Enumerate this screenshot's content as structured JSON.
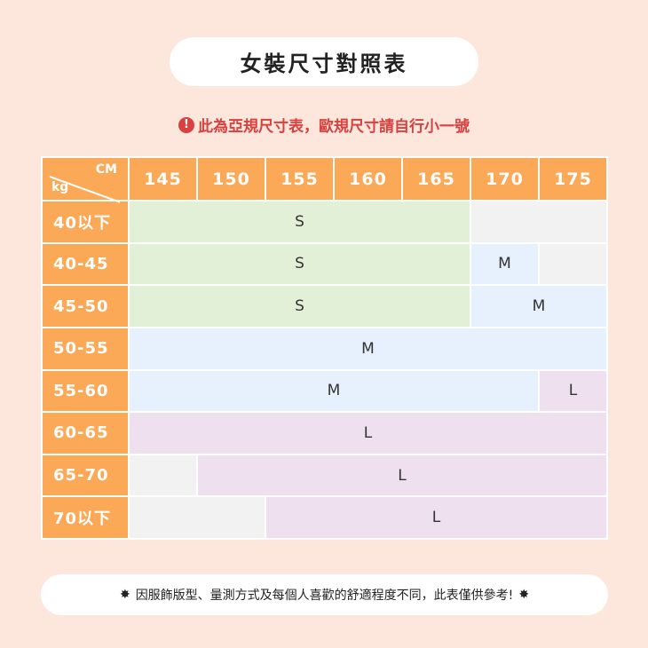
{
  "title": "女裝尺寸對照表",
  "warning": {
    "icon": "exclamation-circle-icon",
    "text": "此為亞規尺寸表，歐規尺寸請自行小一號",
    "color": "#d8413f"
  },
  "table": {
    "corner": {
      "cm": "CM",
      "kg": "kg"
    },
    "heights": [
      "145",
      "150",
      "155",
      "160",
      "165",
      "170",
      "175"
    ],
    "rows": [
      {
        "weight": "40以下",
        "cells": [
          {
            "size": "S",
            "span": 5
          },
          {
            "size": "",
            "span": 2
          }
        ]
      },
      {
        "weight": "40-45",
        "cells": [
          {
            "size": "S",
            "span": 5
          },
          {
            "size": "M",
            "span": 1
          },
          {
            "size": "",
            "span": 1
          }
        ]
      },
      {
        "weight": "45-50",
        "cells": [
          {
            "size": "S",
            "span": 5
          },
          {
            "size": "M",
            "span": 2
          }
        ]
      },
      {
        "weight": "50-55",
        "cells": [
          {
            "size": "M",
            "span": 7
          }
        ]
      },
      {
        "weight": "55-60",
        "cells": [
          {
            "size": "M",
            "span": 6
          },
          {
            "size": "L",
            "span": 1
          }
        ]
      },
      {
        "weight": "60-65",
        "cells": [
          {
            "size": "L",
            "span": 7
          }
        ]
      },
      {
        "weight": "65-70",
        "cells": [
          {
            "size": "",
            "span": 1
          },
          {
            "size": "L",
            "span": 6
          }
        ]
      },
      {
        "weight": "70以下",
        "cells": [
          {
            "size": "",
            "span": 2
          },
          {
            "size": "L",
            "span": 5
          }
        ]
      }
    ],
    "colors": {
      "header": "#fca957",
      "S": "#e1f0d6",
      "M": "#e6f1fd",
      "L": "#eee0ef",
      "empty": "#f2f2f2"
    }
  },
  "note": {
    "icon": "starburst-icon",
    "text": "因服飾版型、量測方式及每個人喜歡的舒適程度不同，此表僅供參考!"
  }
}
